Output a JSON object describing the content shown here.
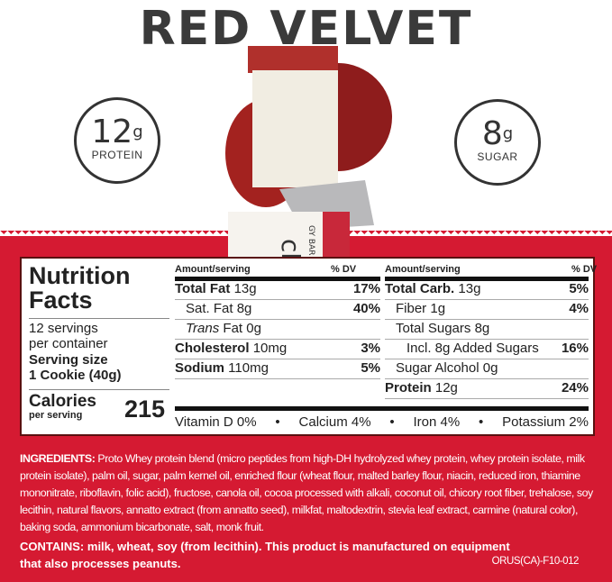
{
  "title": "RED VELVET",
  "badges": [
    {
      "value": "12",
      "unit": "g",
      "label": "PROTEIN"
    },
    {
      "value": "8",
      "unit": "g",
      "label": "SUGAR"
    }
  ],
  "package_text": {
    "brand_partial": "ch",
    "subtitle_partial": "GY BAR"
  },
  "colors": {
    "brand_red": "#d51a32",
    "text_dark": "#222222"
  },
  "nutrition": {
    "heading_line1": "Nutrition",
    "heading_line2": "Facts",
    "servings_line1": "12 servings",
    "servings_line2": "per container",
    "serving_size_label": "Serving size",
    "serving_size_value": "1 Cookie (40g)",
    "calories_label": "Calories",
    "calories_sub": "per serving",
    "calories": "215",
    "col_amount": "Amount/serving",
    "col_dv": "% DV",
    "left": [
      {
        "name": "Total Fat",
        "amount": "13g",
        "dv": "17%"
      },
      {
        "name": "Sat. Fat",
        "amount": "8g",
        "dv": "40%"
      },
      {
        "name": "Trans",
        "amount": "Fat 0g",
        "dv": ""
      },
      {
        "name": "Cholesterol",
        "amount": "10mg",
        "dv": "3%"
      },
      {
        "name": "Sodium",
        "amount": "110mg",
        "dv": "5%"
      }
    ],
    "right": [
      {
        "name": "Total Carb.",
        "amount": "13g",
        "dv": "5%"
      },
      {
        "name": "Fiber",
        "amount": "1g",
        "dv": "4%"
      },
      {
        "name": "Total Sugars",
        "amount": "8g",
        "dv": ""
      },
      {
        "name": "Incl. 8g Added Sugars",
        "amount": "",
        "dv": "16%"
      },
      {
        "name": "Sugar Alcohol",
        "amount": "0g",
        "dv": ""
      },
      {
        "name": "Protein",
        "amount": "12g",
        "dv": "24%"
      }
    ],
    "vitamins": [
      "Vitamin D 0%",
      "Calcium 4%",
      "Iron 4%",
      "Potassium 2%"
    ],
    "bullet": "•"
  },
  "ingredients": {
    "label": "INGREDIENTS:",
    "text": "Proto Whey protein blend (micro peptides from high-DH hydrolyzed whey protein, whey protein isolate, milk protein isolate), palm oil, sugar, palm kernel oil, enriched flour (wheat flour, malted barley flour, niacin, reduced iron, thiamine mononitrate, riboflavin, folic acid), fructose, canola oil, cocoa processed with alkali, coconut oil, chicory root fiber, trehalose, soy lecithin, natural flavors, annatto extract (from annatto seed), milkfat, maltodextrin, stevia leaf extract, carmine (natural color),  baking soda, ammonium bicarbonate, salt, monk fruit."
  },
  "contains": {
    "label": "CONTAINS:",
    "text": "milk, wheat, soy (from lecithin). This product is manufactured on equipment that also processes peanuts."
  },
  "code": "ORUS(CA)-F10-012"
}
